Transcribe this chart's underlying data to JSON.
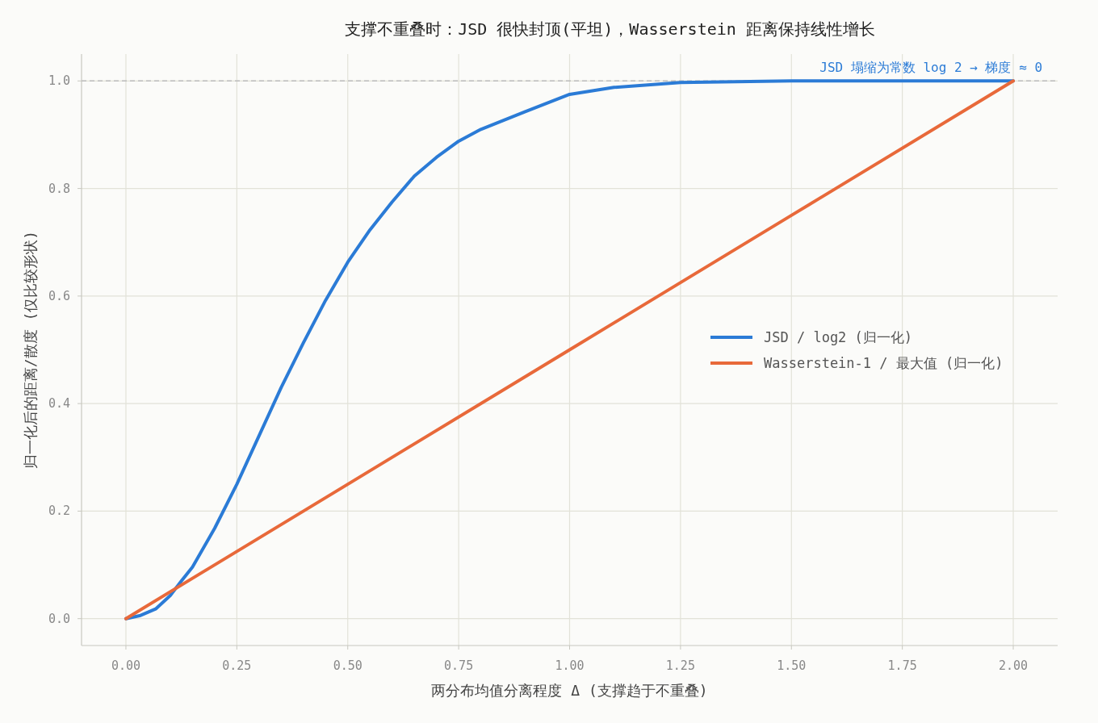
{
  "chart_data": {
    "type": "line",
    "title": "支撑不重叠时：JSD 很快封顶(平坦)，Wasserstein 距离保持线性增长",
    "xlabel": "两分布均值分离程度 Δ (支撑趋于不重叠)",
    "ylabel": "归一化后的距离/散度 (仅比较形状)",
    "xlim": [
      -0.1,
      2.1
    ],
    "ylim": [
      -0.05,
      1.05
    ],
    "xticks": [
      {
        "value": 0,
        "label": "0.00"
      },
      {
        "value": 0.25,
        "label": "0.25"
      },
      {
        "value": 0.5,
        "label": "0.50"
      },
      {
        "value": 0.75,
        "label": "0.75"
      },
      {
        "value": 1,
        "label": "1.00"
      },
      {
        "value": 1.25,
        "label": "1.25"
      },
      {
        "value": 1.5,
        "label": "1.50"
      },
      {
        "value": 1.75,
        "label": "1.75"
      },
      {
        "value": 2,
        "label": "2.00"
      }
    ],
    "yticks": [
      {
        "value": 0,
        "label": "0.0"
      },
      {
        "value": 0.2,
        "label": "0.2"
      },
      {
        "value": 0.4,
        "label": "0.4"
      },
      {
        "value": 0.6,
        "label": "0.6"
      },
      {
        "value": 0.8,
        "label": "0.8"
      },
      {
        "value": 1,
        "label": "1.0"
      }
    ],
    "grid": true,
    "legend": "right",
    "line_style": "solid",
    "marker": "none",
    "series": [
      {
        "name": "JSD / log2 (归一化)",
        "color": "#2b7bd6",
        "x": [
          0,
          0.033,
          0.067,
          0.1,
          0.125,
          0.15,
          0.2,
          0.25,
          0.3,
          0.35,
          0.4,
          0.45,
          0.5,
          0.55,
          0.6,
          0.65,
          0.7,
          0.75,
          0.8,
          0.9,
          1.0,
          1.1,
          1.25,
          1.5,
          2.0
        ],
        "values": [
          0,
          0.006,
          0.018,
          0.043,
          0.07,
          0.096,
          0.168,
          0.25,
          0.34,
          0.43,
          0.513,
          0.592,
          0.663,
          0.723,
          0.775,
          0.823,
          0.858,
          0.888,
          0.91,
          0.943,
          0.975,
          0.988,
          0.997,
          1.0,
          1.0
        ]
      },
      {
        "name": "Wasserstein-1 / 最大值 (归一化)",
        "color": "#e8693a",
        "x": [
          0,
          0.5,
          1.0,
          1.5,
          2.0
        ],
        "values": [
          0,
          0.25,
          0.5,
          0.75,
          1.0
        ]
      }
    ],
    "ref_lines": [
      {
        "axis": "y",
        "value": 1.0,
        "color": "#bbbbbb",
        "line_style": "dashed"
      }
    ],
    "annotations": [
      {
        "text": "JSD 塌缩为常数 log 2 → 梯度 ≈ 0",
        "x": 2.0,
        "y": 1.0
      }
    ]
  }
}
